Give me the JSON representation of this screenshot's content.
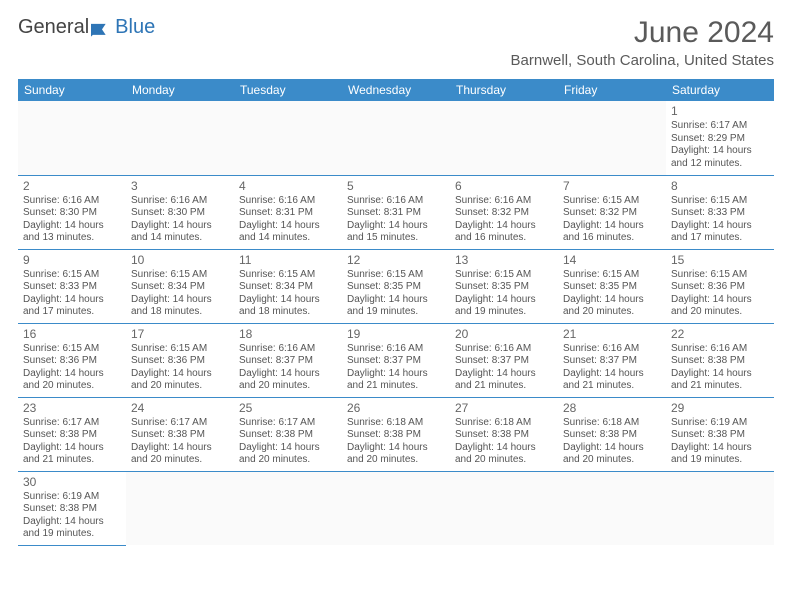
{
  "logo": {
    "text_a": "General",
    "text_b": "Blue"
  },
  "title": "June 2024",
  "location": "Barnwell, South Carolina, United States",
  "colors": {
    "header_bg": "#3b8bc9",
    "header_fg": "#ffffff",
    "row_border": "#3b8bc9",
    "text": "#555555",
    "title_color": "#5a5a5a",
    "logo_blue": "#2e75b6"
  },
  "day_headers": [
    "Sunday",
    "Monday",
    "Tuesday",
    "Wednesday",
    "Thursday",
    "Friday",
    "Saturday"
  ],
  "weeks": [
    [
      null,
      null,
      null,
      null,
      null,
      null,
      {
        "n": "1",
        "sr": "6:17 AM",
        "ss": "8:29 PM",
        "dl": "14 hours and 12 minutes."
      }
    ],
    [
      {
        "n": "2",
        "sr": "6:16 AM",
        "ss": "8:30 PM",
        "dl": "14 hours and 13 minutes."
      },
      {
        "n": "3",
        "sr": "6:16 AM",
        "ss": "8:30 PM",
        "dl": "14 hours and 14 minutes."
      },
      {
        "n": "4",
        "sr": "6:16 AM",
        "ss": "8:31 PM",
        "dl": "14 hours and 14 minutes."
      },
      {
        "n": "5",
        "sr": "6:16 AM",
        "ss": "8:31 PM",
        "dl": "14 hours and 15 minutes."
      },
      {
        "n": "6",
        "sr": "6:16 AM",
        "ss": "8:32 PM",
        "dl": "14 hours and 16 minutes."
      },
      {
        "n": "7",
        "sr": "6:15 AM",
        "ss": "8:32 PM",
        "dl": "14 hours and 16 minutes."
      },
      {
        "n": "8",
        "sr": "6:15 AM",
        "ss": "8:33 PM",
        "dl": "14 hours and 17 minutes."
      }
    ],
    [
      {
        "n": "9",
        "sr": "6:15 AM",
        "ss": "8:33 PM",
        "dl": "14 hours and 17 minutes."
      },
      {
        "n": "10",
        "sr": "6:15 AM",
        "ss": "8:34 PM",
        "dl": "14 hours and 18 minutes."
      },
      {
        "n": "11",
        "sr": "6:15 AM",
        "ss": "8:34 PM",
        "dl": "14 hours and 18 minutes."
      },
      {
        "n": "12",
        "sr": "6:15 AM",
        "ss": "8:35 PM",
        "dl": "14 hours and 19 minutes."
      },
      {
        "n": "13",
        "sr": "6:15 AM",
        "ss": "8:35 PM",
        "dl": "14 hours and 19 minutes."
      },
      {
        "n": "14",
        "sr": "6:15 AM",
        "ss": "8:35 PM",
        "dl": "14 hours and 20 minutes."
      },
      {
        "n": "15",
        "sr": "6:15 AM",
        "ss": "8:36 PM",
        "dl": "14 hours and 20 minutes."
      }
    ],
    [
      {
        "n": "16",
        "sr": "6:15 AM",
        "ss": "8:36 PM",
        "dl": "14 hours and 20 minutes."
      },
      {
        "n": "17",
        "sr": "6:15 AM",
        "ss": "8:36 PM",
        "dl": "14 hours and 20 minutes."
      },
      {
        "n": "18",
        "sr": "6:16 AM",
        "ss": "8:37 PM",
        "dl": "14 hours and 20 minutes."
      },
      {
        "n": "19",
        "sr": "6:16 AM",
        "ss": "8:37 PM",
        "dl": "14 hours and 21 minutes."
      },
      {
        "n": "20",
        "sr": "6:16 AM",
        "ss": "8:37 PM",
        "dl": "14 hours and 21 minutes."
      },
      {
        "n": "21",
        "sr": "6:16 AM",
        "ss": "8:37 PM",
        "dl": "14 hours and 21 minutes."
      },
      {
        "n": "22",
        "sr": "6:16 AM",
        "ss": "8:38 PM",
        "dl": "14 hours and 21 minutes."
      }
    ],
    [
      {
        "n": "23",
        "sr": "6:17 AM",
        "ss": "8:38 PM",
        "dl": "14 hours and 21 minutes."
      },
      {
        "n": "24",
        "sr": "6:17 AM",
        "ss": "8:38 PM",
        "dl": "14 hours and 20 minutes."
      },
      {
        "n": "25",
        "sr": "6:17 AM",
        "ss": "8:38 PM",
        "dl": "14 hours and 20 minutes."
      },
      {
        "n": "26",
        "sr": "6:18 AM",
        "ss": "8:38 PM",
        "dl": "14 hours and 20 minutes."
      },
      {
        "n": "27",
        "sr": "6:18 AM",
        "ss": "8:38 PM",
        "dl": "14 hours and 20 minutes."
      },
      {
        "n": "28",
        "sr": "6:18 AM",
        "ss": "8:38 PM",
        "dl": "14 hours and 20 minutes."
      },
      {
        "n": "29",
        "sr": "6:19 AM",
        "ss": "8:38 PM",
        "dl": "14 hours and 19 minutes."
      }
    ],
    [
      {
        "n": "30",
        "sr": "6:19 AM",
        "ss": "8:38 PM",
        "dl": "14 hours and 19 minutes."
      },
      null,
      null,
      null,
      null,
      null,
      null
    ]
  ],
  "labels": {
    "sunrise": "Sunrise: ",
    "sunset": "Sunset: ",
    "daylight": "Daylight: "
  }
}
